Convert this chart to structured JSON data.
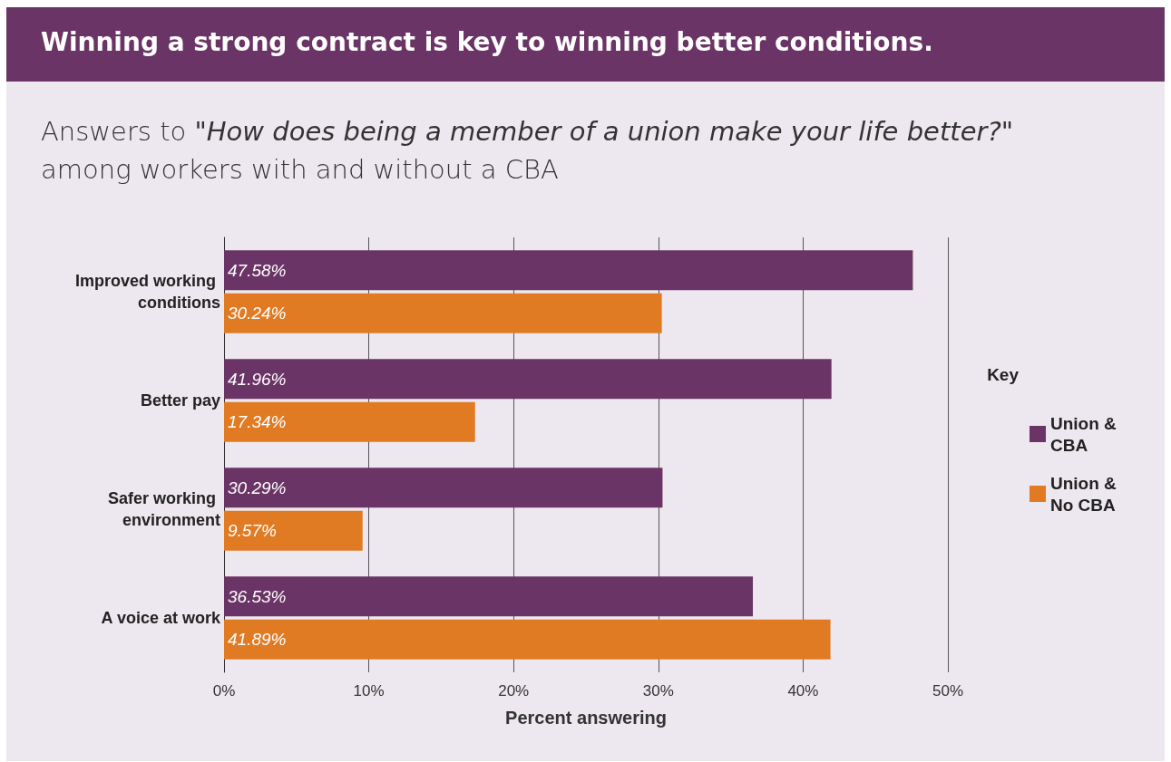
{
  "chart_data": {
    "type": "bar",
    "orientation": "horizontal",
    "title": "Winning a strong contract is key to winning better conditions.",
    "subtitle": "Answers to \"How does being a member of a union make your life better?\" among workers with and without a CBA",
    "categories": [
      "Improved working conditions",
      "Better pay",
      "Safer working environment",
      "A voice at work"
    ],
    "series": [
      {
        "name": "Union & CBA",
        "color": "#6b3466",
        "values": [
          47.58,
          41.96,
          30.29,
          36.53
        ],
        "value_labels": [
          "47.58%",
          "41.96%",
          "30.29%",
          "36.53%"
        ]
      },
      {
        "name": "Union & No CBA",
        "color": "#e07b24",
        "values": [
          30.24,
          17.34,
          9.57,
          41.89
        ],
        "value_labels": [
          "30.24%",
          "17.34%",
          "9.57%",
          "41.89%"
        ]
      }
    ],
    "xlabel": "Percent answering",
    "xlim": [
      0,
      50
    ],
    "xticks": [
      {
        "value": 0,
        "label": "0%"
      },
      {
        "value": 10,
        "label": "10%"
      },
      {
        "value": 20,
        "label": "20%"
      },
      {
        "value": 30,
        "label": "30%"
      },
      {
        "value": 40,
        "label": "40%"
      },
      {
        "value": 50,
        "label": "50%"
      }
    ],
    "grid": "x",
    "legend": "right",
    "legend_title": "Key"
  }
}
